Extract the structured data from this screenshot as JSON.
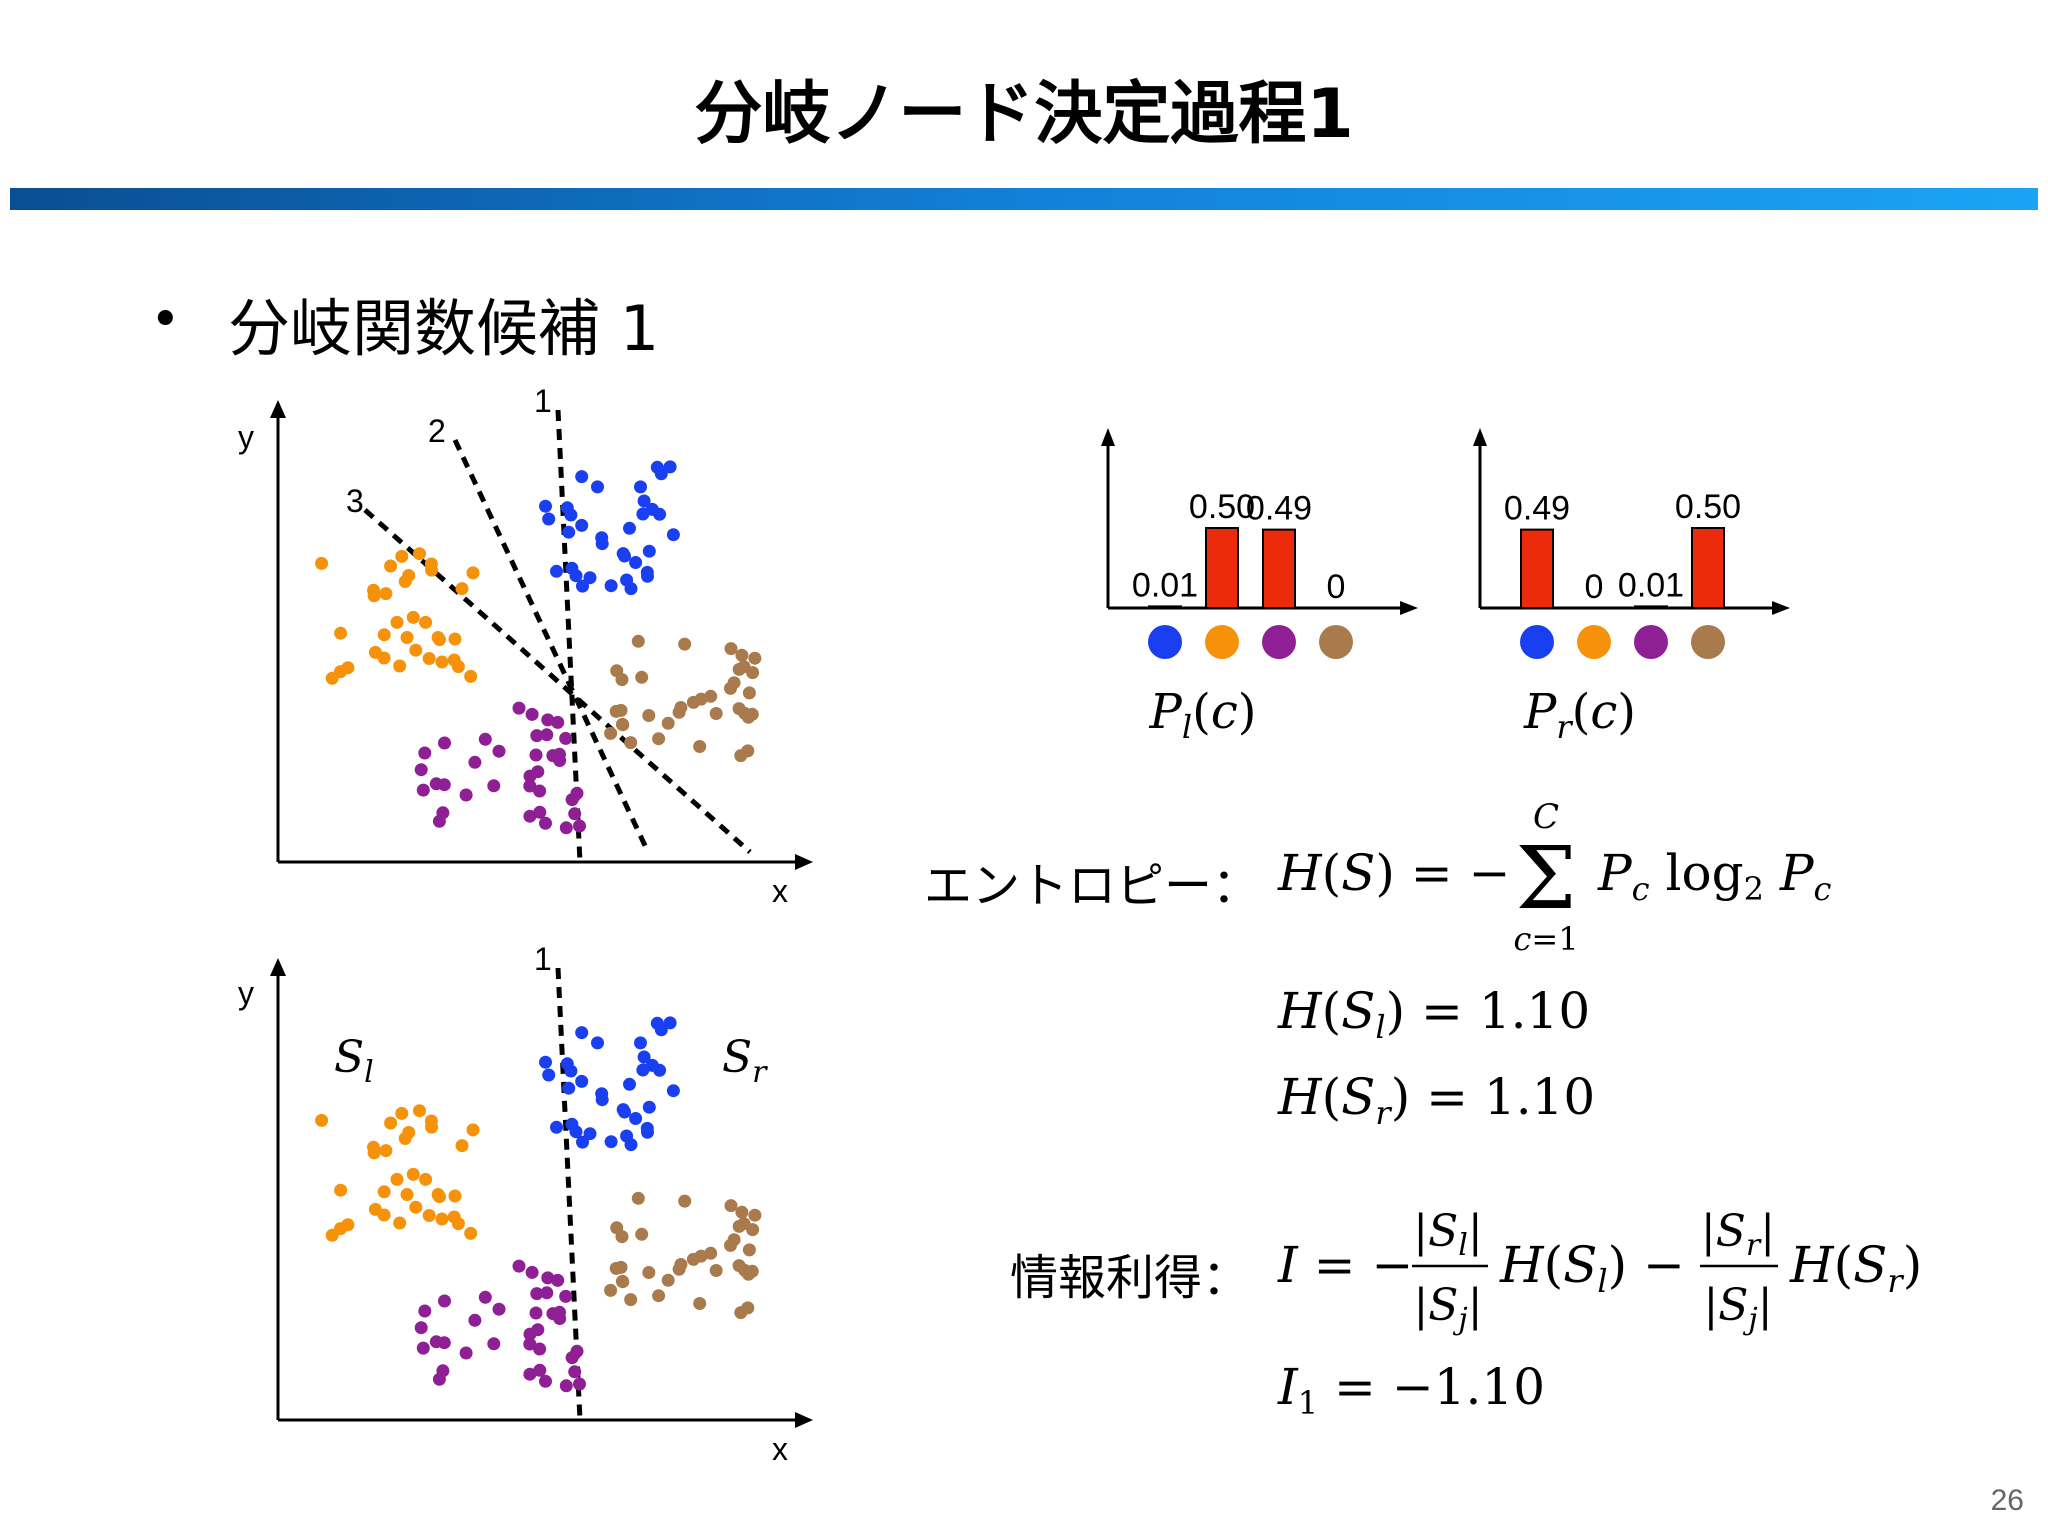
{
  "slide": {
    "title": "分岐ノード決定過程1",
    "bullet": "分岐関数候補 1",
    "page_number": "26"
  },
  "colors": {
    "blue": "#1a3ff0",
    "orange": "#f5920a",
    "purple": "#8e1f94",
    "brown": "#a87a4c",
    "bar": "#ec2a0c",
    "title_bar_start": "#0a4e93",
    "title_bar_end": "#1ba3f6"
  },
  "scatter_top": {
    "x_label": "x",
    "y_label": "y",
    "line_labels": [
      "1",
      "2",
      "3"
    ]
  },
  "scatter_bottom": {
    "x_label": "x",
    "y_label": "y",
    "line_label": "1",
    "left_set": "S",
    "left_sub": "l",
    "right_set": "S",
    "right_sub": "r"
  },
  "chart_data": [
    {
      "type": "bar",
      "categories": [
        "blue",
        "orange",
        "purple",
        "brown"
      ],
      "values": [
        0.01,
        0.5,
        0.49,
        0
      ],
      "value_labels": [
        "0.01",
        "0.50",
        "0.49",
        "0"
      ],
      "title": "P_l(c)",
      "ylim": [
        0,
        0.5
      ]
    },
    {
      "type": "bar",
      "categories": [
        "blue",
        "orange",
        "purple",
        "brown"
      ],
      "values": [
        0.49,
        0,
        0.01,
        0.5
      ],
      "value_labels": [
        "0.49",
        "0",
        "0.01",
        "0.50"
      ],
      "title": "P_r(c)",
      "ylim": [
        0,
        0.5
      ]
    }
  ],
  "equations": {
    "entropy_label": "エントロピー：",
    "entropy_formula": "H(S) = −Σ_{c=1}^{C} P_c log₂ P_c",
    "h_sl": "H(S_l) = 1.10",
    "h_sr": "H(S_r) = 1.10",
    "gain_label": "情報利得：",
    "gain_formula": "I = −(|S_l|/|S_j|) H(S_l) − (|S_r|/|S_j|) H(S_r)",
    "i1": "I_1 = −1.10",
    "h_sl_value": "1.10",
    "h_sr_value": "1.10",
    "i1_value": "−1.10"
  }
}
